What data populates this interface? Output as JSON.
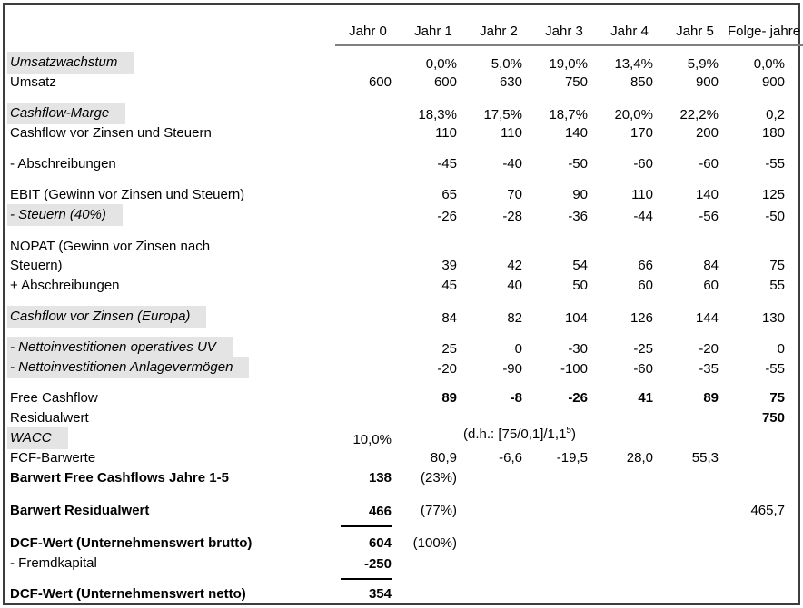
{
  "colors": {
    "background": "#ffffff",
    "text": "#000000",
    "highlight_bg": "#e4e4e4",
    "header_rule": "#7f7f7f",
    "frame_border": "#3d3d3d",
    "sum_line": "#000000"
  },
  "table": {
    "columns": [
      "Jahr 0",
      "Jahr 1",
      "Jahr 2",
      "Jahr 3",
      "Jahr 4",
      "Jahr 5",
      "Folge-\njahre"
    ],
    "wacc_note": {
      "pre": "(d.h.: [75/0,1]/1,1",
      "sup": "5",
      "post": ")"
    },
    "rows": [
      {
        "type": "spacer",
        "height": 6
      },
      {
        "type": "data",
        "label": "Umsatzwachstum",
        "label_style": "highlight",
        "values": [
          "",
          "0,0%",
          "5,0%",
          "19,0%",
          "13,4%",
          "5,9%",
          "0,0%"
        ]
      },
      {
        "type": "data",
        "label": "Umsatz",
        "label_style": "normal",
        "values": [
          "600",
          "600",
          "630",
          "750",
          "850",
          "900",
          "900"
        ]
      },
      {
        "type": "spacer",
        "height": 12
      },
      {
        "type": "data",
        "label": "Cashflow-Marge",
        "label_style": "highlight",
        "values": [
          "",
          "18,3%",
          "17,5%",
          "18,7%",
          "20,0%",
          "22,2%",
          "0,2"
        ]
      },
      {
        "type": "data",
        "label": "Cashflow vor Zinsen und Steuern",
        "label_style": "normal",
        "values": [
          "",
          "110",
          "110",
          "140",
          "170",
          "200",
          "180"
        ]
      },
      {
        "type": "spacer",
        "height": 12
      },
      {
        "type": "data",
        "label": "- Abschreibungen",
        "label_style": "normal",
        "values": [
          "",
          "-45",
          "-40",
          "-50",
          "-60",
          "-60",
          "-55"
        ]
      },
      {
        "type": "spacer",
        "height": 12
      },
      {
        "type": "data",
        "label": "EBIT (Gewinn vor Zinsen und Steuern)",
        "label_style": "normal",
        "values": [
          "",
          "65",
          "70",
          "90",
          "110",
          "140",
          "125"
        ]
      },
      {
        "type": "data",
        "label": "- Steuern (40%)",
        "label_style": "highlight",
        "values": [
          "",
          "-26",
          "-28",
          "-36",
          "-44",
          "-56",
          "-50"
        ]
      },
      {
        "type": "spacer",
        "height": 12
      },
      {
        "type": "data",
        "label": "NOPAT (Gewinn vor Zinsen nach\nSteuern)",
        "label_style": "normal",
        "two_line": true,
        "values": [
          "",
          "39",
          "42",
          "54",
          "66",
          "84",
          "75"
        ]
      },
      {
        "type": "data",
        "label": "+ Abschreibungen",
        "label_style": "normal",
        "values": [
          "",
          "45",
          "40",
          "50",
          "60",
          "60",
          "55"
        ]
      },
      {
        "type": "spacer",
        "height": 12
      },
      {
        "type": "data",
        "label": "Cashflow vor Zinsen (Europa)",
        "label_style": "highlight",
        "values": [
          "",
          "84",
          "82",
          "104",
          "126",
          "144",
          "130"
        ]
      },
      {
        "type": "spacer",
        "height": 12
      },
      {
        "type": "data",
        "label": "- Nettoinvestitionen operatives UV",
        "label_style": "highlight",
        "values": [
          "",
          "25",
          "0",
          "-30",
          "-25",
          "-20",
          "0"
        ]
      },
      {
        "type": "data",
        "label": "- Nettoinvestitionen Anlagevermögen",
        "label_style": "highlight",
        "values": [
          "",
          "-20",
          "-90",
          "-100",
          "-60",
          "-35",
          "-55"
        ]
      },
      {
        "type": "spacer",
        "height": 12
      },
      {
        "type": "data",
        "label": "Free Cashflow",
        "label_style": "normal",
        "values": [
          "",
          "89",
          "-8",
          "-26",
          "41",
          "89",
          "75"
        ],
        "bold_cols": [
          1,
          2,
          3,
          4,
          5,
          6
        ]
      },
      {
        "type": "data",
        "label": "Residualwert",
        "label_style": "normal",
        "values": [
          "",
          "",
          "",
          "",
          "",
          "",
          "750"
        ],
        "bold_cols": [
          6
        ]
      },
      {
        "type": "data",
        "label": "WACC",
        "label_style": "highlight",
        "has_note": true,
        "values": [
          "10,0%",
          "",
          "",
          "",
          "",
          "",
          ""
        ]
      },
      {
        "type": "data",
        "label": "FCF-Barwerte",
        "label_style": "normal",
        "values": [
          "",
          "80,9",
          "-6,6",
          "-19,5",
          "28,0",
          "55,3",
          ""
        ]
      },
      {
        "type": "data",
        "label": "Barwert Free Cashflows Jahre 1-5",
        "label_style": "bold",
        "values": [
          "138",
          "(23%)",
          "",
          "",
          "",
          "",
          ""
        ],
        "bold_cols": [
          0
        ]
      },
      {
        "type": "spacer",
        "height": 14
      },
      {
        "type": "data",
        "label": "Barwert Residualwert",
        "label_style": "bold",
        "values": [
          "466",
          "(77%)",
          "",
          "",
          "",
          "",
          "465,7"
        ],
        "bold_cols": [
          0
        ],
        "underline_cols": [
          0
        ]
      },
      {
        "type": "spacer",
        "height": 14
      },
      {
        "type": "data",
        "label": "DCF-Wert (Unternehmenswert brutto)",
        "label_style": "bold",
        "values": [
          "604",
          "(100%)",
          "",
          "",
          "",
          "",
          ""
        ],
        "bold_cols": [
          0
        ]
      },
      {
        "type": "data",
        "label": "- Fremdkapital",
        "label_style": "normal",
        "values": [
          "-250",
          "",
          "",
          "",
          "",
          "",
          ""
        ],
        "bold_cols": [
          0
        ],
        "underline_cols": [
          0
        ]
      },
      {
        "type": "spacer",
        "height": 12
      },
      {
        "type": "data",
        "label": "DCF-Wert (Unternehmenswert netto)",
        "label_style": "bold",
        "values": [
          "354",
          "",
          "",
          "",
          "",
          "",
          ""
        ],
        "bold_cols": [
          0
        ]
      }
    ]
  }
}
